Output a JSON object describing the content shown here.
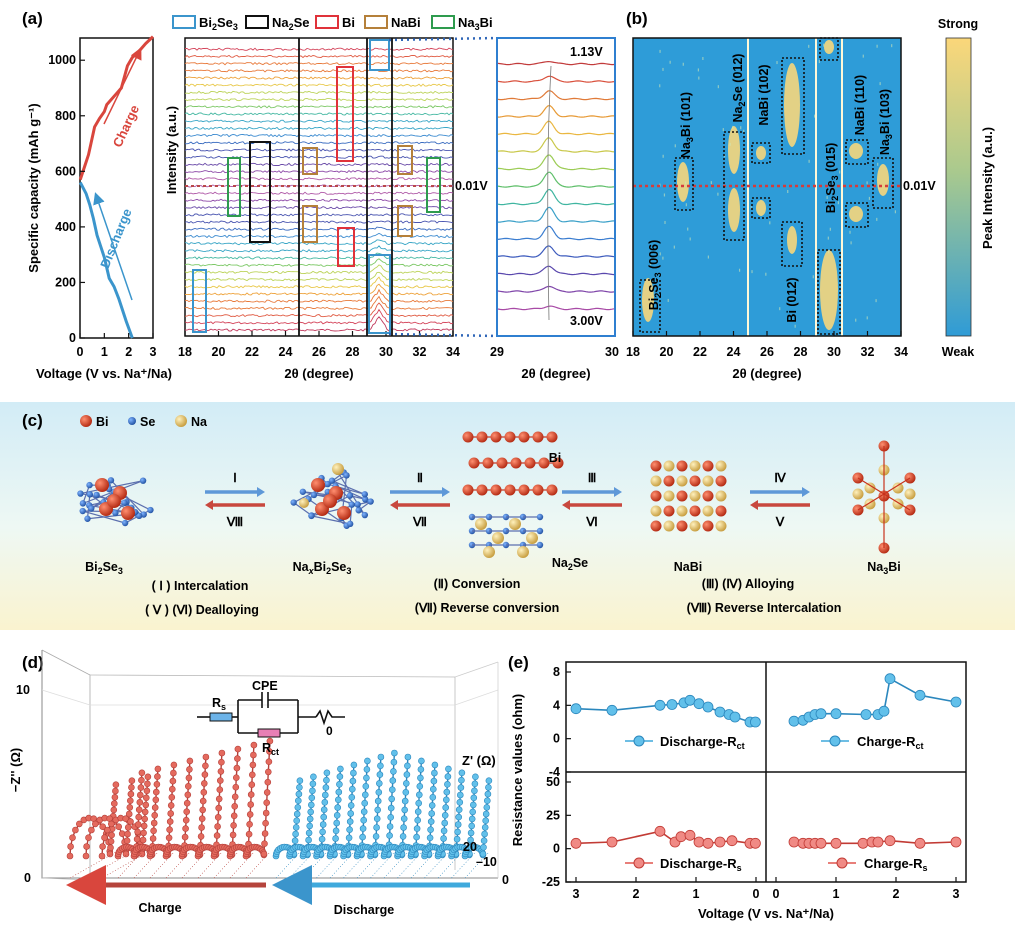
{
  "panels": {
    "a": {
      "label": "(a)",
      "curves": {
        "type": "line",
        "xlabel": "Voltage (V vs. Na⁺/Na)",
        "ylabel": "Specific capacity (mAh g⁻¹)",
        "xlim": [
          0,
          3
        ],
        "ylim": [
          0,
          1080
        ],
        "xticks": [
          "0",
          "1",
          "2",
          "3"
        ],
        "yticks": [
          "0",
          "200",
          "400",
          "600",
          "800",
          "1000"
        ],
        "series": [
          {
            "name": "Discharge",
            "color": "#3b95cc",
            "x": [
              2.15,
              1.9,
              1.6,
              1.4,
              1.2,
              1.0,
              0.85,
              0.7,
              0.55,
              0.4,
              0.25,
              0.1,
              0.01
            ],
            "y": [
              0,
              60,
              140,
              185,
              215,
              290,
              330,
              370,
              430,
              480,
              520,
              545,
              560
            ]
          },
          {
            "name": "Charge",
            "color": "#d9463d",
            "x": [
              0.01,
              0.2,
              0.35,
              0.45,
              0.6,
              0.8,
              1.0,
              1.1,
              1.5,
              1.7,
              1.95,
              2.15,
              2.4,
              2.7,
              3.0
            ],
            "y": [
              570,
              620,
              660,
              700,
              760,
              790,
              815,
              840,
              880,
              900,
              980,
              1010,
              1030,
              1060,
              1085
            ]
          }
        ],
        "annotations": {
          "charge": "Charge",
          "discharge": "Discharge"
        }
      },
      "xrd": {
        "ylabel": "Intensity (a.u.)",
        "xlabel": "2θ (degree)",
        "xticks": [
          "18",
          "20",
          "22",
          "24",
          "26",
          "28",
          "30",
          "32",
          "34"
        ],
        "voltage_marker": "0.01V",
        "legend": [
          "Bi2Se3",
          "Na2Se",
          "Bi",
          "NaBi",
          "Na3Bi"
        ],
        "legend_colors": [
          "#3b95cc",
          "#111111",
          "#e0323a",
          "#b5803a",
          "#2e9b4e"
        ]
      },
      "zoom": {
        "xlabel": "2θ (degree)",
        "xticks": [
          "29",
          "30"
        ],
        "top_label": "1.13V",
        "bottom_label": "3.00V"
      }
    },
    "b": {
      "label": "(b)",
      "xlabel": "2θ (degree)",
      "xticks": [
        "18",
        "20",
        "22",
        "24",
        "26",
        "28",
        "30",
        "32",
        "34"
      ],
      "voltage_marker": "0.01V",
      "colorbar": {
        "top": "Strong",
        "bottom": "Weak",
        "label": "Peak Intensity (a.u.)"
      },
      "peaks": [
        "Bi2Se3 (006)",
        "Na3Bi (101)",
        "Na2Se (012)",
        "NaBi (102)",
        "Bi (012)",
        "Bi2Se3 (015)",
        "NaBi (110)",
        "Na3Bi (103)"
      ]
    },
    "c": {
      "label": "(c)",
      "legend": [
        {
          "name": "Bi",
          "color": "#c8321d"
        },
        {
          "name": "Se",
          "color": "#2f6fc4"
        },
        {
          "name": "Na",
          "color": "#e2c26b"
        }
      ],
      "structures": [
        "Bi2Se3",
        "NaxBi2Se3",
        "Na2Se",
        "NaBi",
        "Na3Bi"
      ],
      "bi_label": "Bi",
      "arrows": [
        {
          "top": "Ⅰ",
          "bottom": "Ⅷ"
        },
        {
          "top": "Ⅱ",
          "bottom": "Ⅶ"
        },
        {
          "top": "Ⅲ",
          "bottom": "Ⅵ"
        },
        {
          "top": "Ⅳ",
          "bottom": "Ⅴ"
        }
      ],
      "processes": [
        "( Ⅰ ) Intercalation",
        "( Ⅴ ) (Ⅵ) Dealloying",
        "(Ⅱ) Conversion",
        "(Ⅶ) Reverse conversion",
        "(Ⅲ) (Ⅳ) Alloying",
        "(Ⅷ) Reverse Intercalation"
      ]
    },
    "d": {
      "label": "(d)",
      "zlabel": "−Z'' (Ω)",
      "xlabel": "Z' (Ω)",
      "ticks": {
        "z10": "10",
        "z0": "0",
        "x20": "20",
        "x10": "10",
        "x0": "0"
      },
      "circuit": {
        "rs": "Rs",
        "cpe": "CPE",
        "rct": "Rct",
        "w": "0"
      },
      "arrows": {
        "charge": "Charge",
        "discharge": "Discharge"
      },
      "spectra": {
        "charge_count": 12,
        "discharge_count": 15
      }
    },
    "e": {
      "label": "(e)",
      "ylabel": "Resistance values (ohm)",
      "xlabel": "Voltage (V vs. Na⁺/Na)",
      "xticks_discharge": [
        "3",
        "2",
        "1",
        "0"
      ],
      "xticks_charge": [
        "0",
        "1",
        "2",
        "3"
      ],
      "yticks_top": [
        "8",
        "4",
        "0",
        "-4"
      ],
      "yticks_bottom": [
        "50",
        "25",
        "0",
        "-25"
      ]
    }
  },
  "chart_data": [
    {
      "type": "line",
      "title": "",
      "xlabel": "Voltage (V vs. Na⁺/Na)",
      "ylabel": "Resistance values (ohm)",
      "xlim": [
        3,
        0
      ],
      "ylim": [
        -4,
        8
      ],
      "series": [
        {
          "name": "Discharge-Rct",
          "color": "#3fa9dc",
          "x": [
            3.0,
            2.4,
            1.6,
            1.4,
            1.2,
            1.1,
            0.95,
            0.8,
            0.6,
            0.45,
            0.35,
            0.1,
            0.01
          ],
          "y": [
            3.6,
            3.4,
            4.0,
            4.1,
            4.3,
            4.6,
            4.2,
            3.8,
            3.2,
            2.9,
            2.6,
            2.0,
            2.0
          ]
        }
      ]
    },
    {
      "type": "line",
      "title": "",
      "xlabel": "Voltage (V vs. Na⁺/Na)",
      "ylabel": "Resistance values (ohm)",
      "xlim": [
        0,
        3
      ],
      "ylim": [
        -4,
        8
      ],
      "series": [
        {
          "name": "Charge-Rct",
          "color": "#3fa9dc",
          "x": [
            0.3,
            0.45,
            0.55,
            0.65,
            0.75,
            1.0,
            1.5,
            1.7,
            1.8,
            1.9,
            2.4,
            3.0
          ],
          "y": [
            2.1,
            2.2,
            2.6,
            2.9,
            3.0,
            3.0,
            2.9,
            2.9,
            3.3,
            7.2,
            5.2,
            4.4
          ]
        }
      ]
    },
    {
      "type": "line",
      "title": "",
      "xlabel": "Voltage (V vs. Na⁺/Na)",
      "ylabel": "Resistance values (ohm)",
      "xlim": [
        3,
        0
      ],
      "ylim": [
        -25,
        50
      ],
      "series": [
        {
          "name": "Discharge-Rs",
          "color": "#e0554f",
          "x": [
            3.0,
            2.4,
            1.6,
            1.35,
            1.25,
            1.1,
            0.95,
            0.8,
            0.6,
            0.4,
            0.1,
            0.01
          ],
          "y": [
            4,
            5,
            13,
            5,
            9,
            10,
            5,
            4,
            5,
            6,
            4,
            4
          ]
        }
      ]
    },
    {
      "type": "line",
      "title": "",
      "xlabel": "Voltage (V vs. Na⁺/Na)",
      "ylabel": "Resistance values (ohm)",
      "xlim": [
        0,
        3
      ],
      "ylim": [
        -25,
        50
      ],
      "series": [
        {
          "name": "Charge-Rs",
          "color": "#e0554f",
          "x": [
            0.3,
            0.45,
            0.55,
            0.65,
            0.75,
            1.0,
            1.45,
            1.6,
            1.7,
            1.9,
            2.4,
            3.0
          ],
          "y": [
            5,
            4,
            4,
            4,
            4,
            4,
            4,
            5,
            5,
            6,
            4,
            5
          ]
        }
      ]
    }
  ]
}
